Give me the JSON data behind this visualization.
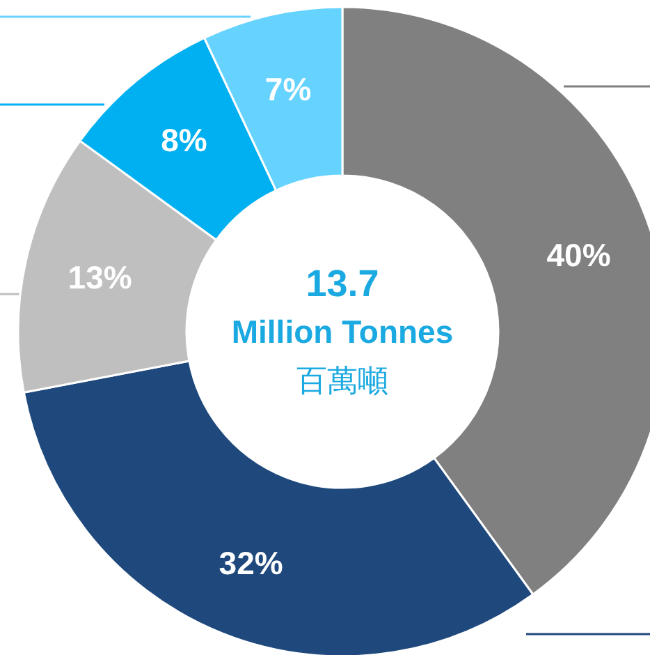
{
  "chart_data": {
    "type": "donut",
    "categories": [
      null,
      null,
      null,
      null,
      null
    ],
    "values": [
      40,
      32,
      13,
      8,
      7
    ],
    "colors": [
      "#808080",
      "#1f497d",
      "#bfbfbf",
      "#00b0f0",
      "#66d3ff"
    ],
    "value_labels": [
      "40%",
      "32%",
      "13%",
      "8%",
      "7%"
    ],
    "annotations": [
      "13.7",
      "Million Tonnes",
      "百萬噸"
    ]
  }
}
